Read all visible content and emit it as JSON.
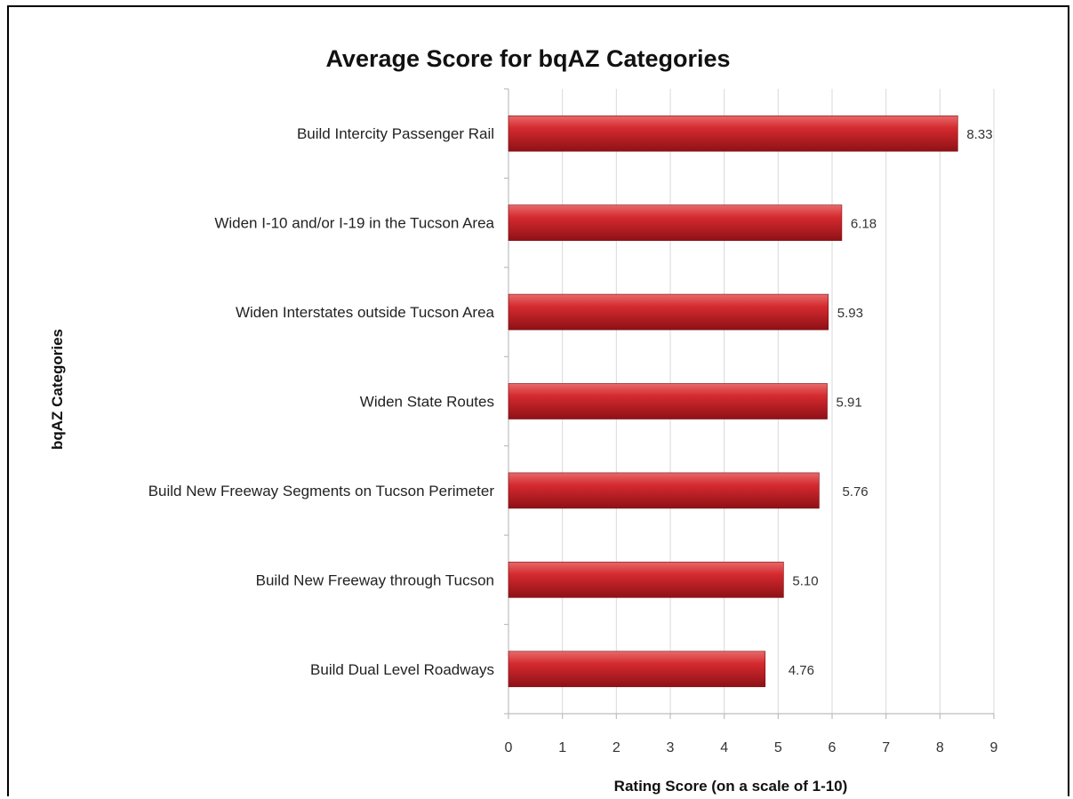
{
  "chart_data": {
    "type": "bar",
    "orientation": "horizontal",
    "title": "Average Score for bqAZ Categories",
    "xlabel": "Rating Score (on a scale of 1-10)",
    "ylabel": "bqAZ Categories",
    "categories": [
      "Build Intercity Passenger Rail",
      "Widen I-10 and/or I-19 in the Tucson Area",
      "Widen Interstates outside Tucson Area",
      "Widen State Routes",
      "Build New Freeway Segments on Tucson Perimeter",
      "Build New Freeway through Tucson",
      "Build Dual Level Roadways"
    ],
    "values": [
      8.33,
      6.18,
      5.93,
      5.91,
      5.76,
      5.1,
      4.76
    ],
    "value_labels": [
      "8.33",
      "6.18",
      "5.93",
      "5.91",
      "5.76",
      "5.10",
      "4.76"
    ],
    "xlim": [
      0,
      9
    ],
    "x_ticks": [
      "0",
      "1",
      "2",
      "3",
      "4",
      "5",
      "6",
      "7",
      "8",
      "9"
    ],
    "grid": true,
    "legend": "none",
    "bar_color": "#c8202a"
  }
}
